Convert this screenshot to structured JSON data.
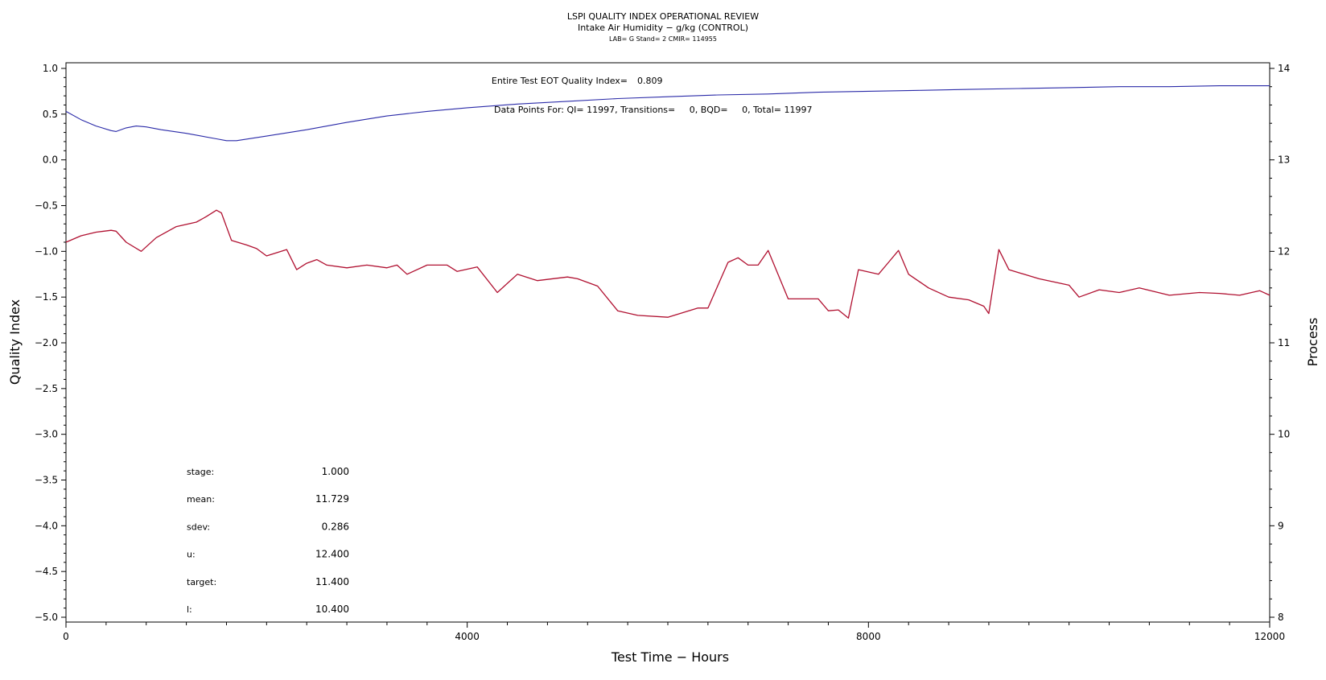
{
  "chart_data": {
    "type": "line",
    "title": "LSPI QUALITY INDEX OPERATIONAL REVIEW",
    "subtitle": "Intake Air Humidity − g/kg (CONTROL)",
    "subtitle2": "LAB= G Stand= 2 CMIR= 114955",
    "xlabel": "Test Time − Hours",
    "ylabel": "Quality Index",
    "y2label": "Process",
    "xlim": [
      0,
      12000
    ],
    "ylim": [
      -5.0,
      1.0
    ],
    "y2lim": [
      8,
      14
    ],
    "x_ticks": [
      "0",
      "4000",
      "8000",
      "12000"
    ],
    "y_ticks": [
      "1.0",
      "0.5",
      "0.0",
      "−0.5",
      "−1.0",
      "−1.5",
      "−2.0",
      "−2.5",
      "−3.0",
      "−3.5",
      "−4.0",
      "−4.5",
      "−5.0"
    ],
    "y2_ticks": [
      "14",
      "13",
      "12",
      "11",
      "10",
      "9",
      "8"
    ],
    "grid": false,
    "annotations": {
      "eot_label": "Entire Test EOT Quality Index=",
      "eot_value": "0.809",
      "datapoints": "Data Points For: QI= 11997, Transitions=     0, BQD=     0, Total= 11997"
    },
    "stats": [
      {
        "label": "stage:",
        "value": "1.000"
      },
      {
        "label": "mean:",
        "value": "11.729"
      },
      {
        "label": "sdev:",
        "value": "0.286"
      },
      {
        "label": "u:",
        "value": "12.400"
      },
      {
        "label": "target:",
        "value": "11.400"
      },
      {
        "label": "l:",
        "value": "10.400"
      }
    ],
    "series": [
      {
        "axis": "left",
        "color": "#2a2aa8",
        "x": [
          0,
          150,
          300,
          450,
          500,
          600,
          700,
          800,
          950,
          1200,
          1500,
          1600,
          1700,
          2000,
          2400,
          2800,
          3200,
          3600,
          4000,
          4500,
          5000,
          5500,
          6000,
          6500,
          7000,
          7500,
          8000,
          8500,
          9000,
          9500,
          10000,
          10500,
          11000,
          11500,
          12000
        ],
        "values": [
          0.53,
          0.44,
          0.37,
          0.32,
          0.31,
          0.35,
          0.37,
          0.36,
          0.33,
          0.29,
          0.23,
          0.21,
          0.21,
          0.26,
          0.33,
          0.41,
          0.48,
          0.53,
          0.57,
          0.61,
          0.64,
          0.67,
          0.69,
          0.71,
          0.72,
          0.74,
          0.75,
          0.76,
          0.77,
          0.78,
          0.79,
          0.8,
          0.8,
          0.81,
          0.81
        ]
      },
      {
        "axis": "right",
        "color": "#b01030",
        "x": [
          0,
          150,
          300,
          450,
          500,
          600,
          750,
          900,
          1100,
          1300,
          1400,
          1500,
          1550,
          1650,
          1800,
          1900,
          2000,
          2200,
          2300,
          2400,
          2500,
          2600,
          2800,
          3000,
          3200,
          3300,
          3400,
          3600,
          3800,
          3900,
          4100,
          4300,
          4500,
          4700,
          5000,
          5100,
          5300,
          5500,
          5700,
          6000,
          6300,
          6400,
          6600,
          6700,
          6800,
          6900,
          7000,
          7200,
          7500,
          7600,
          7700,
          7800,
          7900,
          8100,
          8200,
          8300,
          8400,
          8600,
          8800,
          9000,
          9150,
          9200,
          9300,
          9400,
          9700,
          10000,
          10100,
          10300,
          10500,
          10700,
          11000,
          11300,
          11500,
          11700,
          11900,
          12000
        ],
        "values": [
          12.1,
          12.17,
          12.21,
          12.23,
          12.22,
          12.1,
          12.0,
          12.15,
          12.27,
          12.32,
          12.38,
          12.45,
          12.42,
          12.12,
          12.07,
          12.03,
          11.95,
          12.02,
          11.8,
          11.87,
          11.91,
          11.85,
          11.82,
          11.85,
          11.82,
          11.85,
          11.75,
          11.85,
          11.85,
          11.78,
          11.83,
          11.55,
          11.75,
          11.68,
          11.72,
          11.7,
          11.62,
          11.35,
          11.3,
          11.28,
          11.38,
          11.38,
          11.88,
          11.93,
          11.85,
          11.85,
          12.01,
          11.48,
          11.48,
          11.35,
          11.36,
          11.27,
          11.8,
          11.75,
          11.88,
          12.01,
          11.75,
          11.6,
          11.5,
          11.47,
          11.4,
          11.32,
          12.02,
          11.8,
          11.7,
          11.63,
          11.5,
          11.58,
          11.55,
          11.6,
          11.52,
          11.55,
          11.54,
          11.52,
          11.57,
          11.52
        ]
      }
    ]
  }
}
